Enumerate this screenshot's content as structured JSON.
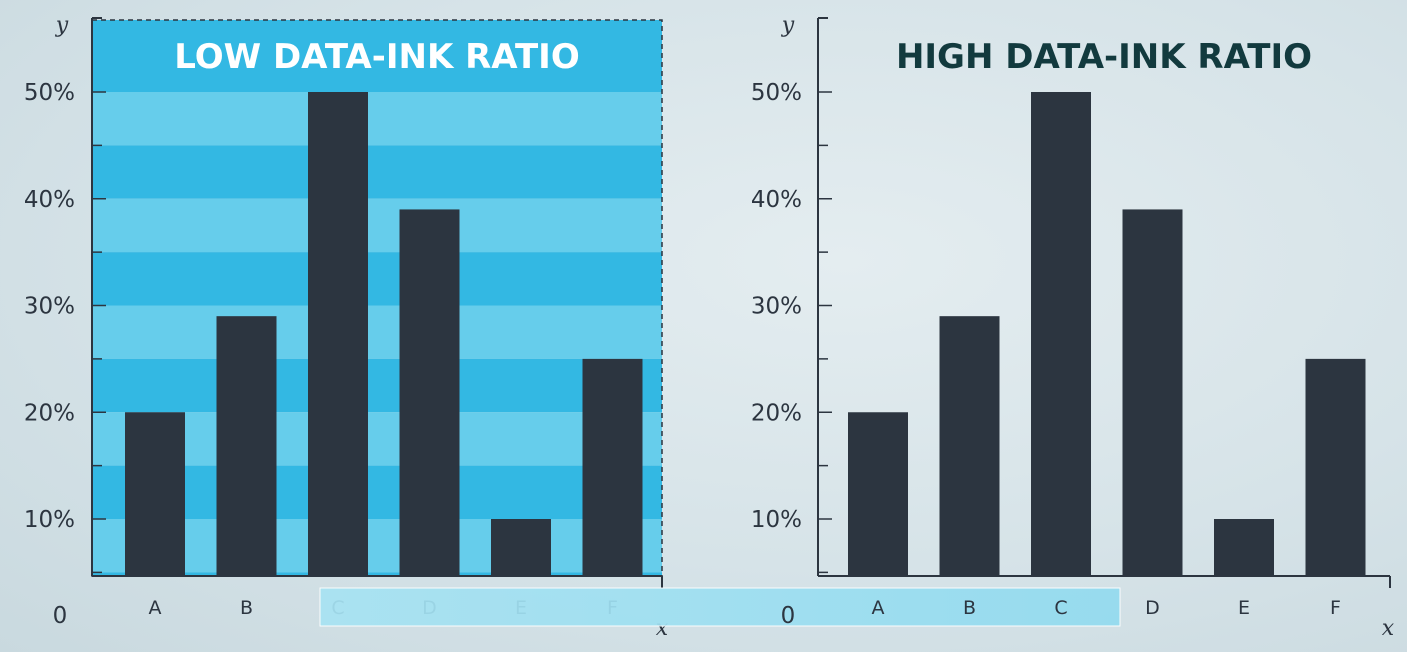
{
  "colors": {
    "bar": "#2c3540",
    "axis": "#2c3540",
    "stripe_dark": "#33b8e3",
    "stripe_light": "#66cdeb",
    "low_title": "#ffffff",
    "high_title": "#123a3e",
    "highlight": "#9ee0f2"
  },
  "chart_data": [
    {
      "type": "bar",
      "title": "LOW DATA-INK RATIO",
      "xlabel": "x",
      "ylabel": "y",
      "origin_label": "0",
      "categories": [
        "A",
        "B",
        "C",
        "D",
        "E",
        "F"
      ],
      "values": [
        20,
        29,
        50,
        39,
        10,
        25
      ],
      "ylim": [
        0,
        55
      ],
      "yticks": [
        10,
        20,
        30,
        40,
        50
      ],
      "ytick_labels": [
        "10%",
        "20%",
        "30%",
        "40%",
        "50%"
      ],
      "background": "striped",
      "grid": false
    },
    {
      "type": "bar",
      "title": "HIGH DATA-INK RATIO",
      "xlabel": "x",
      "ylabel": "y",
      "origin_label": "0",
      "categories": [
        "A",
        "B",
        "C",
        "D",
        "E",
        "F"
      ],
      "values": [
        20,
        29,
        50,
        39,
        10,
        25
      ],
      "ylim": [
        0,
        55
      ],
      "yticks": [
        10,
        20,
        30,
        40,
        50
      ],
      "ytick_labels": [
        "10%",
        "20%",
        "30%",
        "40%",
        "50%"
      ],
      "background": "none",
      "grid": false
    }
  ]
}
